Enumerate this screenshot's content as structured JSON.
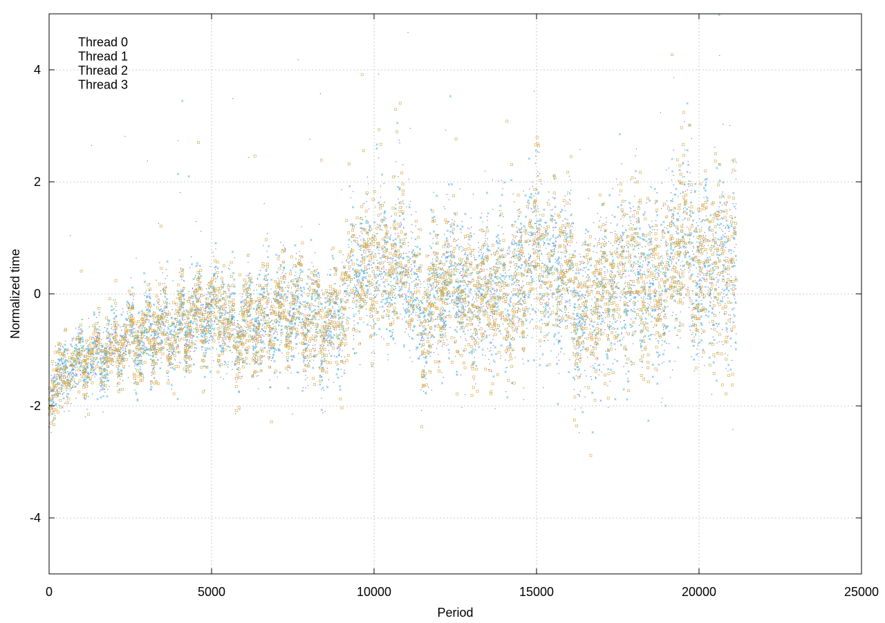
{
  "chart_data": {
    "type": "scatter",
    "title": "",
    "xlabel": "Period",
    "ylabel": "Normalized time",
    "xlim": [
      0,
      25000
    ],
    "ylim": [
      -5,
      5
    ],
    "xticks": [
      0,
      5000,
      10000,
      15000,
      20000,
      25000
    ],
    "xtick_labels": [
      "0",
      "5000",
      "10000",
      "15000",
      "20000",
      "25000"
    ],
    "yticks": [
      -4,
      -2,
      0,
      2,
      4
    ],
    "ytick_labels": [
      "-4",
      "-2",
      "0",
      "2",
      "4"
    ],
    "grid": true,
    "legend_position": "top-left",
    "x_max_observed": 21150,
    "series": [
      {
        "name": "Thread 0",
        "color": "#9b59d6",
        "marker": "dot"
      },
      {
        "name": "Thread 1",
        "color": "#2ea678",
        "marker": "dot"
      },
      {
        "name": "Thread 2",
        "color": "#4fb0dc",
        "marker": "x"
      },
      {
        "name": "Thread 3",
        "color": "#d8a640",
        "marker": "square"
      }
    ],
    "trend": [
      [
        0,
        -1.9
      ],
      [
        300,
        -1.5
      ],
      [
        700,
        -1.3
      ],
      [
        1200,
        -1.15
      ],
      [
        1800,
        -1.0
      ],
      [
        2500,
        -0.85
      ],
      [
        3200,
        -0.7
      ],
      [
        4000,
        -0.55
      ],
      [
        4700,
        -0.35
      ],
      [
        5300,
        -0.3
      ],
      [
        5700,
        -0.8
      ],
      [
        6300,
        -0.5
      ],
      [
        7000,
        -0.4
      ],
      [
        7500,
        -0.3
      ],
      [
        8000,
        -0.4
      ],
      [
        8500,
        -0.6
      ],
      [
        9000,
        -0.3
      ],
      [
        9500,
        0.4
      ],
      [
        10000,
        0.3
      ],
      [
        10500,
        0.4
      ],
      [
        11000,
        0.4
      ],
      [
        11500,
        -0.6
      ],
      [
        12000,
        0.0
      ],
      [
        12500,
        0.2
      ],
      [
        13000,
        -0.2
      ],
      [
        13500,
        0.0
      ],
      [
        14000,
        0.0
      ],
      [
        14500,
        0.2
      ],
      [
        15000,
        0.7
      ],
      [
        15500,
        0.3
      ],
      [
        16000,
        0.5
      ],
      [
        16300,
        -0.5
      ],
      [
        16800,
        -0.3
      ],
      [
        17500,
        0.2
      ],
      [
        18000,
        0.3
      ],
      [
        18500,
        0.1
      ],
      [
        19000,
        0.2
      ],
      [
        19500,
        1.0
      ],
      [
        20000,
        0.3
      ],
      [
        20500,
        0.5
      ],
      [
        21150,
        0.4
      ]
    ],
    "spikes": [
      [
        9300,
        2.2
      ],
      [
        9700,
        1.6
      ],
      [
        10100,
        2.8
      ],
      [
        10700,
        2.5
      ],
      [
        11100,
        1.3
      ],
      [
        11800,
        1.4
      ],
      [
        12500,
        1.2
      ],
      [
        13300,
        0.9
      ],
      [
        14000,
        0.9
      ],
      [
        14800,
        1.4
      ],
      [
        15000,
        2.3
      ],
      [
        16000,
        1.5
      ],
      [
        17000,
        0.8
      ],
      [
        18000,
        1.0
      ],
      [
        19500,
        2.6
      ],
      [
        21000,
        2.4
      ]
    ]
  }
}
